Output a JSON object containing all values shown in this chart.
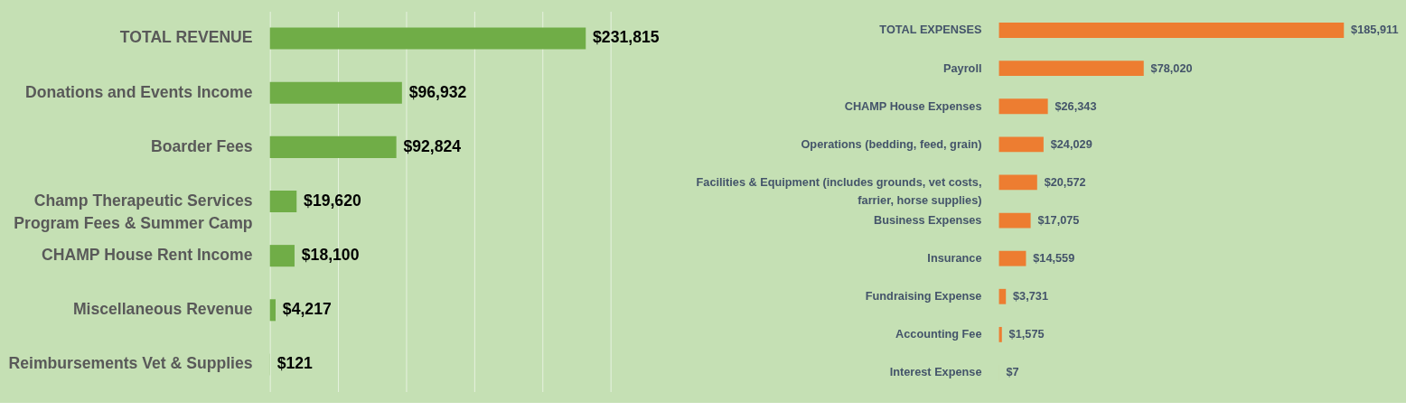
{
  "chart_data": [
    {
      "type": "bar",
      "orientation": "horizontal",
      "categories": [
        "TOTAL REVENUE",
        "Donations and Events Income",
        "Boarder Fees",
        "Champ Therapeutic Services Program Fees & Summer Camp",
        "CHAMP House Rent Income",
        "Miscellaneous Revenue",
        "Reimbursements Vet & Supplies"
      ],
      "values": [
        231815,
        96932,
        92824,
        19620,
        18100,
        4217,
        121
      ],
      "value_labels": [
        "$231,815",
        "$96,932",
        "$92,824",
        "$19,620",
        "$18,100",
        "$4,217",
        "$121"
      ],
      "color": "#70ad47",
      "xlim": [
        0,
        250000
      ],
      "xticks": [
        {
          "value": 0,
          "label": null
        },
        {
          "value": 50000,
          "label": null
        },
        {
          "value": 100000,
          "label": null
        },
        {
          "value": 150000,
          "label": null
        },
        {
          "value": 200000,
          "label": null
        },
        {
          "value": 250000,
          "label": null
        }
      ],
      "grid": "x",
      "tick_labels": "y"
    },
    {
      "type": "bar",
      "orientation": "horizontal",
      "categories": [
        "TOTAL EXPENSES",
        "Payroll",
        "CHAMP House Expenses",
        "Operations (bedding, feed, grain)",
        "Facilities & Equipment (includes grounds, vet costs, farrier, horse supplies)",
        "Business Expenses",
        "Insurance",
        "Fundraising Expense",
        "Accounting Fee",
        "Interest Expense"
      ],
      "values": [
        185911,
        78020,
        26343,
        24029,
        20572,
        17075,
        14559,
        3731,
        1575,
        7
      ],
      "value_labels": [
        "$185,911",
        "$78,020",
        "$26,343",
        "$24,029",
        "$20,572",
        "$17,075",
        "$14,559",
        "$3,731",
        "$1,575",
        "$7"
      ],
      "color": "#ed7d31",
      "xlim": [
        0,
        186000
      ],
      "grid": false,
      "tick_labels": "y"
    }
  ]
}
